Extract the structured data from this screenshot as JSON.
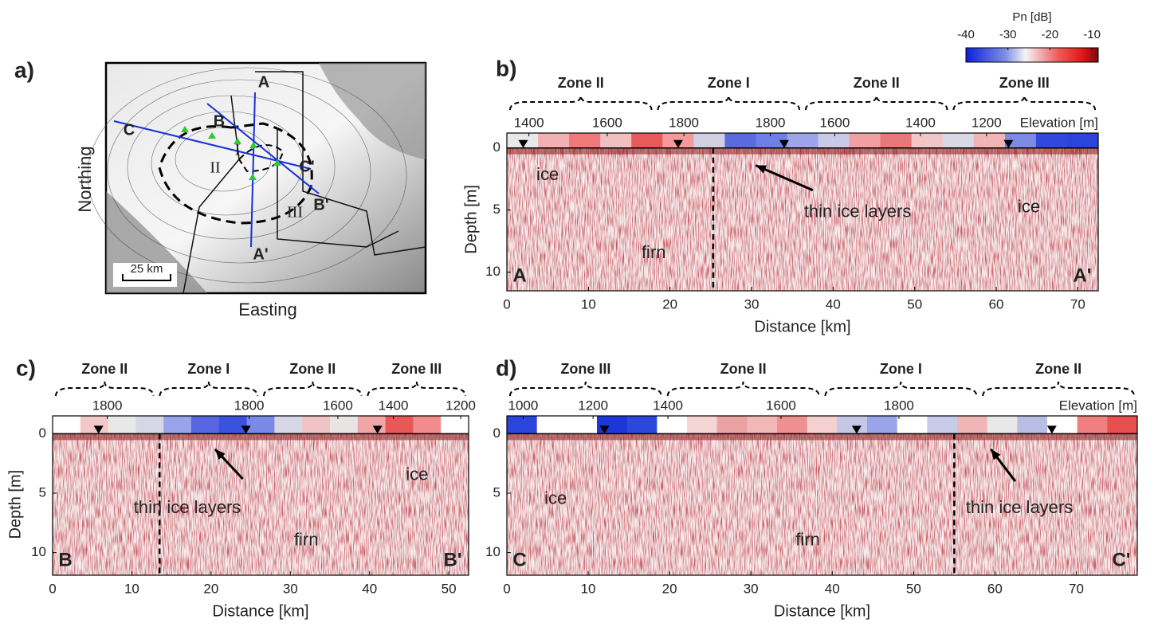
{
  "figure": {
    "colorbar": {
      "title": "Pn [dB]",
      "lim": [
        -40,
        -8.5
      ],
      "ticks": [
        -40,
        -30,
        -20,
        -10
      ]
    },
    "map": {
      "label": "a)",
      "xlabel": "Easting",
      "ylabel": "Northing",
      "scale": "25 km",
      "profile_labels": [
        "A",
        "B",
        "C",
        "A'",
        "B'",
        "C'"
      ],
      "zone_labels": [
        "I",
        "II",
        "III"
      ]
    },
    "profiles": [
      {
        "label": "b)",
        "zones": [
          "Zone II",
          "Zone I",
          "Zone II",
          "Zone III"
        ],
        "elevation_label": "Elevation [m]",
        "elevation_ticks": [
          {
            "value": 1400,
            "km": 2.7
          },
          {
            "value": 1600,
            "km": 12.3
          },
          {
            "value": 1800,
            "km": 21.7
          },
          {
            "value": 1800,
            "km": 32.3
          },
          {
            "value": 1600,
            "km": 40.2
          },
          {
            "value": 1400,
            "km": 50.7
          },
          {
            "value": 1200,
            "km": 58.8
          }
        ],
        "markers": [
          2,
          21,
          34,
          61.5
        ],
        "boundary_km": 25.3,
        "xlabel": "Distance [km]",
        "ylabel": "Depth [m]",
        "xlim": [
          0,
          72.5
        ],
        "xticks": [
          0,
          10,
          20,
          30,
          40,
          50,
          60,
          70
        ],
        "ylim": [
          -1.2,
          11.5
        ],
        "yticks": [
          0,
          5,
          10
        ],
        "annotations": [
          "ice",
          "firn",
          "thin ice layers",
          "ice"
        ],
        "start": "A",
        "end": "A'"
      },
      {
        "label": "c)",
        "zones": [
          "Zone II",
          "Zone I",
          "Zone II",
          "Zone III"
        ],
        "elevation_ticks": [
          {
            "value": 1800,
            "km": 6.9
          },
          {
            "value": 1800,
            "km": 24.8
          },
          {
            "value": 1600,
            "km": 36
          },
          {
            "value": 1400,
            "km": 43
          },
          {
            "value": 1200,
            "km": 51.5
          }
        ],
        "markers": [
          5.8,
          24.4,
          41
        ],
        "boundary_km": 13.5,
        "xlabel": "Distance [km]",
        "ylabel": "Depth [m]",
        "xlim": [
          0,
          52.5
        ],
        "xticks": [
          0,
          10,
          20,
          30,
          40,
          50
        ],
        "ylim": [
          -1.5,
          11.9
        ],
        "yticks": [
          0,
          5,
          10
        ],
        "annotations": [
          "ice",
          "thin ice layers",
          "firn"
        ],
        "start": "B",
        "end": "B'"
      },
      {
        "label": "d)",
        "zones": [
          "Zone III",
          "Zone II",
          "Zone I",
          "Zone II"
        ],
        "elevation_label": "Elevation [m]",
        "elevation_ticks": [
          {
            "value": 1000,
            "km": 2
          },
          {
            "value": 1200,
            "km": 10.6
          },
          {
            "value": 1400,
            "km": 19.8
          },
          {
            "value": 1600,
            "km": 33.7
          },
          {
            "value": 1800,
            "km": 48.2
          }
        ],
        "markers": [
          12,
          43,
          67
        ],
        "boundary_km": 55,
        "xlabel": "Distance [km]",
        "xlim": [
          0,
          77.5
        ],
        "xticks": [
          0,
          10,
          20,
          30,
          40,
          50,
          60,
          70
        ],
        "ylim": [
          -1.5,
          11.9
        ],
        "yticks": [
          0,
          5,
          10
        ],
        "annotations": [
          "ice",
          "firn",
          "thin ice layers"
        ],
        "start": "C",
        "end": "C'"
      }
    ]
  }
}
